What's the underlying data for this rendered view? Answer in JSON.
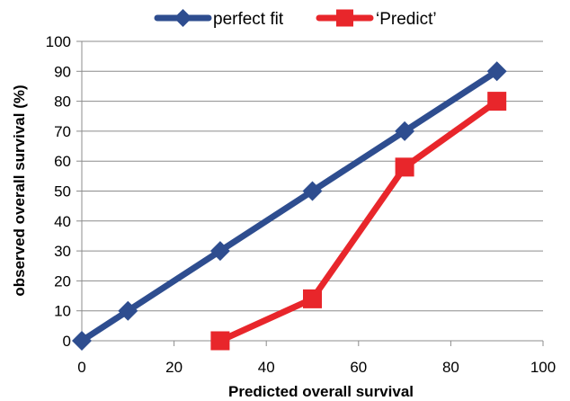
{
  "chart_data": {
    "type": "line",
    "xlabel": "Predicted overall survival",
    "ylabel": "observed  overall survival  (%)",
    "xlim": [
      0,
      100
    ],
    "ylim": [
      0,
      100
    ],
    "x_ticks": [
      0,
      20,
      40,
      60,
      80,
      100
    ],
    "y_ticks": [
      0,
      10,
      20,
      30,
      40,
      50,
      60,
      70,
      80,
      90,
      100
    ],
    "grid": "horizontal",
    "legend_position": "top",
    "series": [
      {
        "name": "perfect fit",
        "color": "#2e4d8f",
        "marker": "diamond",
        "points": [
          [
            0,
            0
          ],
          [
            10,
            10
          ],
          [
            30,
            30
          ],
          [
            50,
            50
          ],
          [
            70,
            70
          ],
          [
            90,
            90
          ]
        ]
      },
      {
        "name": "‘Predict’",
        "color": "#e8262b",
        "marker": "square",
        "points": [
          [
            30,
            0
          ],
          [
            50,
            14
          ],
          [
            70,
            58
          ],
          [
            90,
            80
          ]
        ]
      }
    ]
  }
}
